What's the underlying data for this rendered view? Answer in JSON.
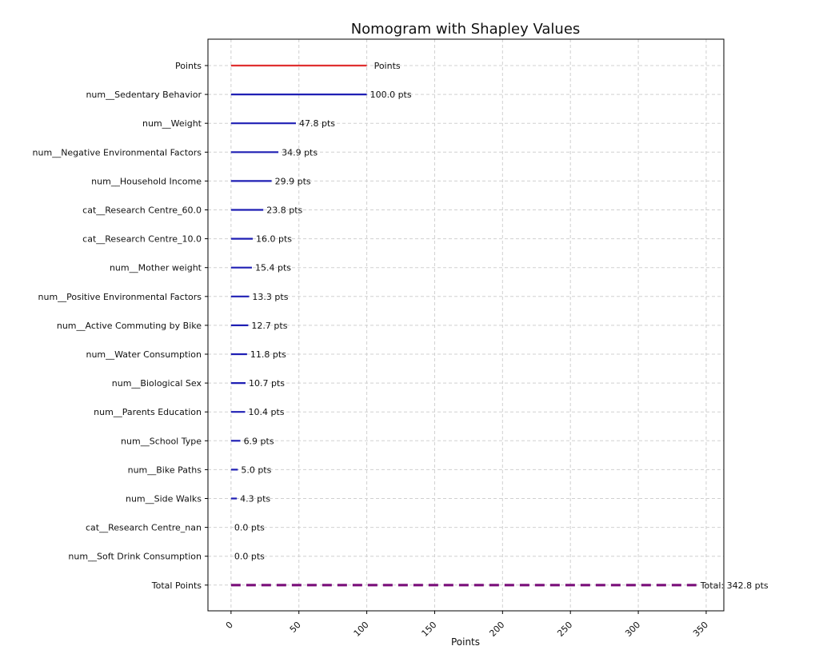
{
  "chart_data": {
    "type": "bar",
    "title": "Nomogram with Shapley Values",
    "xlabel": "Points",
    "ylabel": "",
    "xlim": [
      -17,
      363
    ],
    "xticks": [
      0,
      50,
      100,
      150,
      200,
      250,
      300,
      350
    ],
    "grid": true,
    "orientation": "horizontal",
    "points_row": {
      "label": "Points",
      "value": 100,
      "annotation": "Points",
      "color": "#e03030"
    },
    "features": [
      {
        "label": "num__Sedentary Behavior",
        "value": 100.0,
        "annotation": "100.0 pts"
      },
      {
        "label": "num__Weight",
        "value": 47.8,
        "annotation": "47.8 pts"
      },
      {
        "label": "num__Negative Environmental Factors",
        "value": 34.9,
        "annotation": "34.9 pts"
      },
      {
        "label": "num__Household Income",
        "value": 29.9,
        "annotation": "29.9 pts"
      },
      {
        "label": "cat__Research Centre_60.0",
        "value": 23.8,
        "annotation": "23.8 pts"
      },
      {
        "label": "cat__Research Centre_10.0",
        "value": 16.0,
        "annotation": "16.0 pts"
      },
      {
        "label": "num__Mother weight",
        "value": 15.4,
        "annotation": "15.4 pts"
      },
      {
        "label": "num__Positive Environmental Factors",
        "value": 13.3,
        "annotation": "13.3 pts"
      },
      {
        "label": "num__Active Commuting by Bike",
        "value": 12.7,
        "annotation": "12.7 pts"
      },
      {
        "label": "num__Water Consumption",
        "value": 11.8,
        "annotation": "11.8 pts"
      },
      {
        "label": "num__Biological Sex",
        "value": 10.7,
        "annotation": "10.7 pts"
      },
      {
        "label": "num__Parents Education",
        "value": 10.4,
        "annotation": "10.4 pts"
      },
      {
        "label": "num__School Type",
        "value": 6.9,
        "annotation": "6.9 pts"
      },
      {
        "label": "num__Bike Paths",
        "value": 5.0,
        "annotation": "5.0 pts"
      },
      {
        "label": "num__Side Walks",
        "value": 4.3,
        "annotation": "4.3 pts"
      },
      {
        "label": "cat__Research Centre_nan",
        "value": 0.0,
        "annotation": "0.0 pts"
      },
      {
        "label": "num__Soft Drink Consumption",
        "value": 0.0,
        "annotation": "0.0 pts"
      }
    ],
    "feature_color": "#1f1fb4",
    "total_row": {
      "label": "Total Points",
      "value": 342.8,
      "annotation": "Total: 342.8 pts",
      "color": "#7a0f7a",
      "style": "dashed"
    }
  }
}
